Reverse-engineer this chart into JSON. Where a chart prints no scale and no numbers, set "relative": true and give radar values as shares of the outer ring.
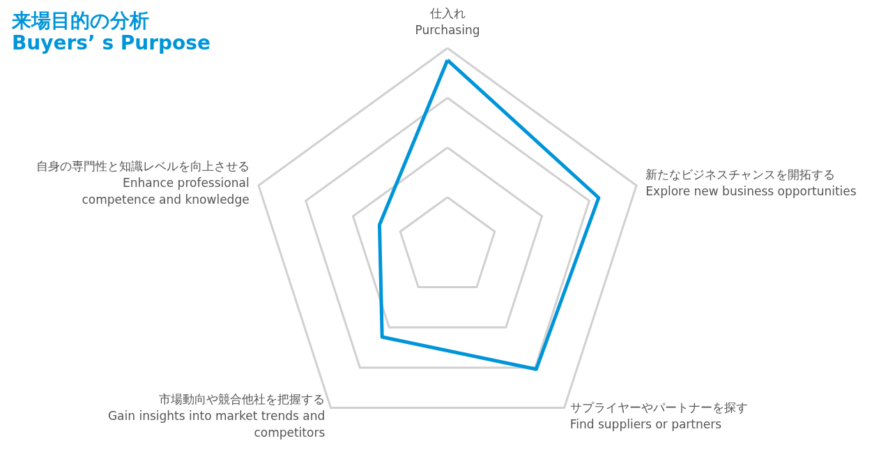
{
  "chart_data": {
    "type": "radar",
    "title": "来場目的の分析\nBuyers’ s Purpose",
    "relative": true,
    "categories": [
      "仕入れ\nPurchasing",
      "新たなビジネスチャンスを開拓する\nExplore new business opportunities",
      "サプライヤーやパートナーを探す\nFind suppliers or partners",
      "市場動向や競合他社を把握する\nGain insights into market trends and\ncompetitors",
      "自身の専門性と知識レベルを向上させる\nEnhance professional\ncompetence and knowledge"
    ],
    "series": [
      {
        "color": "#0095d9",
        "values": [
          0.94,
          0.8,
          0.76,
          0.56,
          0.36
        ]
      }
    ],
    "legend": false,
    "marker": "none",
    "line_style": "solid"
  }
}
